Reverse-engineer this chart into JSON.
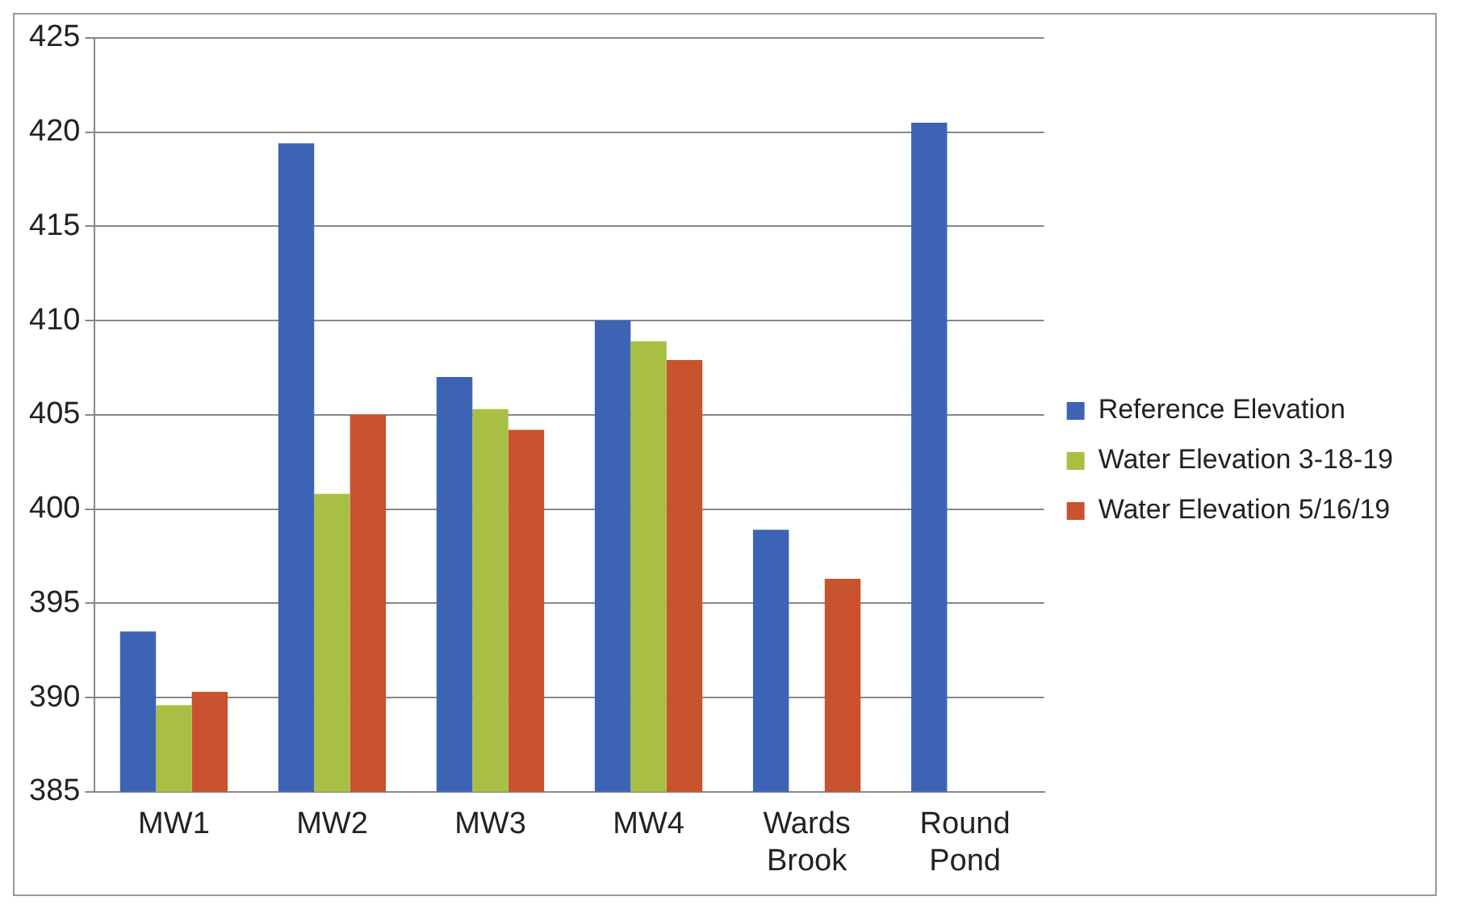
{
  "chart_data": {
    "type": "bar",
    "categories": [
      "MW1",
      "MW2",
      "MW3",
      "MW4",
      "Wards Brook",
      "Round Pond"
    ],
    "series": [
      {
        "name": "Reference Elevation",
        "color": "#3d64b4",
        "values": [
          393.5,
          419.4,
          407.0,
          410.0,
          398.9,
          420.5
        ]
      },
      {
        "name": "Water Elevation 3-18-19",
        "color": "#a8bf44",
        "values": [
          389.6,
          400.8,
          405.3,
          408.9,
          null,
          null
        ]
      },
      {
        "name": "Water Elevation 5/16/19",
        "color": "#c8532e",
        "values": [
          390.3,
          405.0,
          404.2,
          407.9,
          396.3,
          null
        ]
      }
    ],
    "ylim": [
      385,
      425
    ],
    "yticks": [
      385,
      390,
      395,
      400,
      405,
      410,
      415,
      420,
      425
    ],
    "grid": "y",
    "legend": "right"
  }
}
